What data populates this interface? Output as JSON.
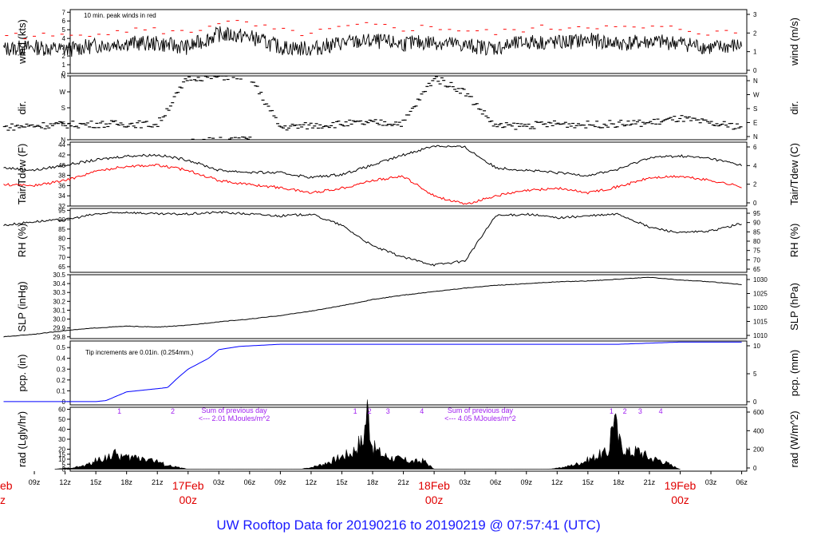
{
  "footer": {
    "title": "UW Rooftop Data for 20190216  to  20190219 @ 07:57:41  (UTC)"
  },
  "colors": {
    "black": "#000000",
    "red": "#ff0000",
    "blue": "#0000ff",
    "purple": "#a020f0",
    "date_red": "#e00000",
    "title_blue": "#1a1aff"
  },
  "x_axis": {
    "ticks": [
      "09z",
      "12z",
      "15z",
      "18z",
      "21z",
      "03z",
      "06z",
      "09z",
      "12z",
      "15z",
      "18z",
      "21z",
      "03z",
      "06z",
      "09z",
      "12z",
      "15z",
      "18z",
      "21z",
      "03z",
      "06z"
    ],
    "date_markers": [
      {
        "date": "17Feb",
        "time": "00z"
      },
      {
        "date": "18Feb",
        "time": "00z"
      },
      {
        "date": "19Feb",
        "time": "00z"
      }
    ],
    "left_partial": {
      "date": "eb",
      "time": "z"
    }
  },
  "chart_data": [
    {
      "type": "line",
      "id": "wind",
      "ylabel_left": "wind (kts)",
      "ylabel_right": "wind (m/s)",
      "ylim": [
        0,
        7.3
      ],
      "yticks_left": [
        "0",
        "1",
        "2",
        "3",
        "4",
        "5",
        "6",
        "7"
      ],
      "yticks_right": [
        "0",
        "1",
        "2",
        "3"
      ],
      "annotation": "10 min. peak winds in red",
      "series": [
        {
          "name": "wind",
          "x_hours": [
            0,
            3,
            6,
            9,
            12,
            15,
            18,
            21,
            24,
            27,
            30,
            33,
            36,
            39,
            42,
            45,
            48,
            51,
            54,
            57,
            60,
            63,
            66,
            69,
            72
          ],
          "values": [
            2.8,
            3,
            2.7,
            3.2,
            3.5,
            3.4,
            3,
            4.5,
            4.2,
            3,
            2.8,
            3.5,
            3.7,
            3.4,
            3.6,
            3.2,
            2.9,
            3.6,
            3.5,
            3.8,
            3.4,
            3.6,
            3.5,
            2.9,
            3.2
          ]
        },
        {
          "name": "peak",
          "x_hours": [
            0,
            3,
            6,
            9,
            12,
            15,
            18,
            21,
            24,
            27,
            30,
            33,
            36,
            39,
            42,
            45,
            48,
            51,
            54,
            57,
            60,
            63,
            66,
            69,
            72
          ],
          "values": [
            4.4,
            4.3,
            4.2,
            4.7,
            5,
            4.9,
            4.6,
            5.9,
            5.6,
            4.8,
            4.5,
            5.2,
            5.5,
            5.1,
            5.3,
            4.9,
            4.6,
            5.1,
            5.2,
            5.5,
            5.1,
            5.2,
            5.1,
            4.6,
            4.7
          ]
        }
      ]
    },
    {
      "type": "scatter",
      "id": "dir",
      "ylabel_left": "dir.",
      "ylabel_right": "dir.",
      "ylim": [
        0,
        360
      ],
      "yticks_left": [
        "N",
        "E",
        "S",
        "W",
        "N"
      ],
      "yticks_right": [
        "N",
        "E",
        "S",
        "W",
        "N"
      ],
      "series": [
        {
          "name": "direction",
          "x_hours": [
            0,
            3,
            6,
            9,
            12,
            15,
            18,
            21,
            24,
            27,
            30,
            33,
            36,
            39,
            42,
            45,
            48,
            51,
            54,
            57,
            60,
            63,
            66,
            69,
            72
          ],
          "values": [
            70,
            80,
            85,
            88,
            90,
            85,
            350,
            355,
            360,
            70,
            80,
            90,
            95,
            95,
            350,
            270,
            75,
            80,
            90,
            85,
            90,
            95,
            120,
            90,
            75
          ]
        }
      ]
    },
    {
      "type": "line",
      "id": "temp",
      "ylabel_left": "Tair/Tdew (F)",
      "ylabel_right": "Tair/Tdew (C)",
      "ylim": [
        32,
        44.5
      ],
      "yticks_left": [
        "32",
        "34",
        "36",
        "38",
        "40",
        "42",
        "44"
      ],
      "yticks_right": [
        "0",
        "2",
        "4",
        "6"
      ],
      "series": [
        {
          "name": "Tair",
          "x_hours": [
            0,
            3,
            6,
            9,
            12,
            15,
            18,
            21,
            24,
            27,
            30,
            33,
            36,
            39,
            42,
            45,
            48,
            51,
            54,
            57,
            60,
            63,
            66,
            69,
            72
          ],
          "values": [
            39.5,
            39,
            40,
            41,
            41.8,
            42,
            41,
            39,
            38.6,
            38.5,
            37.6,
            38.2,
            40,
            42,
            43.8,
            43.5,
            39.5,
            39,
            38.5,
            38,
            39.2,
            41.5,
            41.8,
            41.3,
            40
          ]
        },
        {
          "name": "Tdew",
          "x_hours": [
            0,
            3,
            6,
            9,
            12,
            15,
            18,
            21,
            24,
            27,
            30,
            33,
            36,
            39,
            42,
            45,
            48,
            51,
            54,
            57,
            60,
            63,
            66,
            69,
            72
          ],
          "values": [
            36.2,
            36,
            37,
            38.8,
            39.8,
            40,
            39,
            37,
            36.2,
            35.6,
            34.6,
            35.5,
            37,
            37.8,
            34,
            32.3,
            34,
            35,
            35.5,
            34.6,
            35.8,
            37.5,
            37.8,
            37,
            35.8
          ]
        }
      ]
    },
    {
      "type": "line",
      "id": "rh",
      "ylabel_left": "RH (%)",
      "ylabel_right": "RH (%)",
      "ylim": [
        62,
        96
      ],
      "yticks_left": [
        "65",
        "70",
        "75",
        "80",
        "85",
        "90",
        "95"
      ],
      "yticks_right": [
        "65",
        "70",
        "75",
        "80",
        "85",
        "90",
        "95"
      ],
      "series": [
        {
          "name": "RH",
          "x_hours": [
            0,
            3,
            6,
            9,
            12,
            15,
            18,
            21,
            24,
            27,
            30,
            33,
            36,
            39,
            42,
            45,
            48,
            51,
            54,
            57,
            60,
            63,
            66,
            69,
            72
          ],
          "values": [
            87,
            89,
            90,
            93,
            94,
            93,
            93,
            94,
            93,
            92,
            93,
            87,
            76,
            70,
            66,
            68,
            92,
            93,
            91,
            92,
            93,
            86,
            83,
            84,
            88
          ]
        }
      ]
    },
    {
      "type": "line",
      "id": "slp",
      "ylabel_left": "SLP (inHg)",
      "ylabel_right": "SLP (hPa)",
      "ylim": [
        29.78,
        30.5
      ],
      "yticks_left": [
        "29.8",
        "29.9",
        "30.0",
        "30.1",
        "30.2",
        "30.3",
        "30.4",
        "30.5"
      ],
      "yticks_right": [
        "1010",
        "1015",
        "1020",
        "1025",
        "1030"
      ],
      "series": [
        {
          "name": "SLP",
          "x_hours": [
            0,
            3,
            6,
            9,
            12,
            15,
            18,
            21,
            24,
            27,
            30,
            33,
            36,
            39,
            42,
            45,
            48,
            51,
            54,
            57,
            60,
            63,
            66,
            69,
            72
          ],
          "values": [
            29.8,
            29.83,
            29.87,
            29.9,
            29.92,
            29.91,
            29.93,
            29.97,
            30.0,
            30.04,
            30.09,
            30.15,
            30.22,
            30.27,
            30.31,
            30.35,
            30.38,
            30.4,
            30.42,
            30.43,
            30.45,
            30.47,
            30.44,
            30.42,
            30.39
          ]
        }
      ]
    },
    {
      "type": "line",
      "id": "pcp",
      "ylabel_left": "pcp. (in)",
      "ylabel_right": "pcp. (mm)",
      "ylim": [
        -0.03,
        0.56
      ],
      "yticks_left": [
        "0",
        "0.1",
        "0.2",
        "0.3",
        "0.4",
        "0.5"
      ],
      "yticks_right": [
        "0",
        "5",
        "10"
      ],
      "annotation": "Tip increments are 0.01in. (0.254mm.)",
      "series": [
        {
          "name": "pcp",
          "x_hours": [
            0,
            3,
            6,
            9,
            10,
            12,
            15,
            16,
            17,
            18,
            20,
            21,
            23,
            25,
            27,
            30,
            33,
            42,
            45,
            54,
            57,
            60,
            63,
            66,
            69,
            72
          ],
          "values": [
            0,
            0,
            0,
            0,
            0.01,
            0.09,
            0.12,
            0.13,
            0.22,
            0.3,
            0.4,
            0.48,
            0.51,
            0.52,
            0.53,
            0.53,
            0.53,
            0.53,
            0.53,
            0.53,
            0.53,
            0.53,
            0.54,
            0.55,
            0.55,
            0.55
          ]
        }
      ]
    },
    {
      "type": "area",
      "id": "rad",
      "ylabel_left": "rad (Lgly/hr)",
      "ylabel_right": "rad (W/m^2)",
      "ylim": [
        -2,
        62
      ],
      "yticks_left": [
        "0",
        "5",
        "10",
        "15",
        "20",
        "30",
        "40",
        "50",
        "60"
      ],
      "yticks_right": [
        "0",
        "200",
        "400",
        "600"
      ],
      "annotations": [
        {
          "text": "Sum of previous day",
          "x_hours": 22.5
        },
        {
          "text": "<--- 2.01 MJoules/m^2",
          "x_hours": 22.5
        },
        {
          "text": "Sum of previous day",
          "x_hours": 46.5
        },
        {
          "text": "<--- 4.05 MJoules/m^2",
          "x_hours": 46.5
        }
      ],
      "markers": [
        {
          "label": "1",
          "x_hours": 11.3
        },
        {
          "label": "2",
          "x_hours": 16.5
        },
        {
          "label": "1",
          "x_hours": 34.3
        },
        {
          "label": "2",
          "x_hours": 35.7
        },
        {
          "label": "3",
          "x_hours": 37.5
        },
        {
          "label": "4",
          "x_hours": 40.8
        },
        {
          "label": "1",
          "x_hours": 59.3
        },
        {
          "label": "2",
          "x_hours": 60.6
        },
        {
          "label": "3",
          "x_hours": 62.1
        },
        {
          "label": "4",
          "x_hours": 64.1
        }
      ],
      "series": [
        {
          "name": "rad",
          "x_hours": [
            5,
            6,
            7,
            8,
            9,
            10,
            11,
            12,
            13,
            14,
            15,
            16,
            17,
            18,
            29,
            30,
            31,
            32,
            33,
            34,
            34.8,
            35,
            35.5,
            36,
            37,
            38,
            39,
            40,
            41,
            42,
            53,
            54,
            55,
            56,
            57,
            58,
            59,
            59.5,
            60,
            60.5,
            61,
            62,
            63,
            64,
            65,
            66
          ],
          "values": [
            0,
            1,
            2,
            4,
            9,
            13,
            16,
            12,
            13,
            12,
            8,
            4,
            2,
            0,
            0,
            2,
            5,
            9,
            14,
            18,
            30,
            27,
            66,
            24,
            15,
            12,
            10,
            8,
            9,
            0,
            0,
            1,
            3,
            6,
            10,
            15,
            18,
            61,
            30,
            24,
            18,
            20,
            12,
            10,
            5,
            0
          ]
        }
      ]
    }
  ]
}
